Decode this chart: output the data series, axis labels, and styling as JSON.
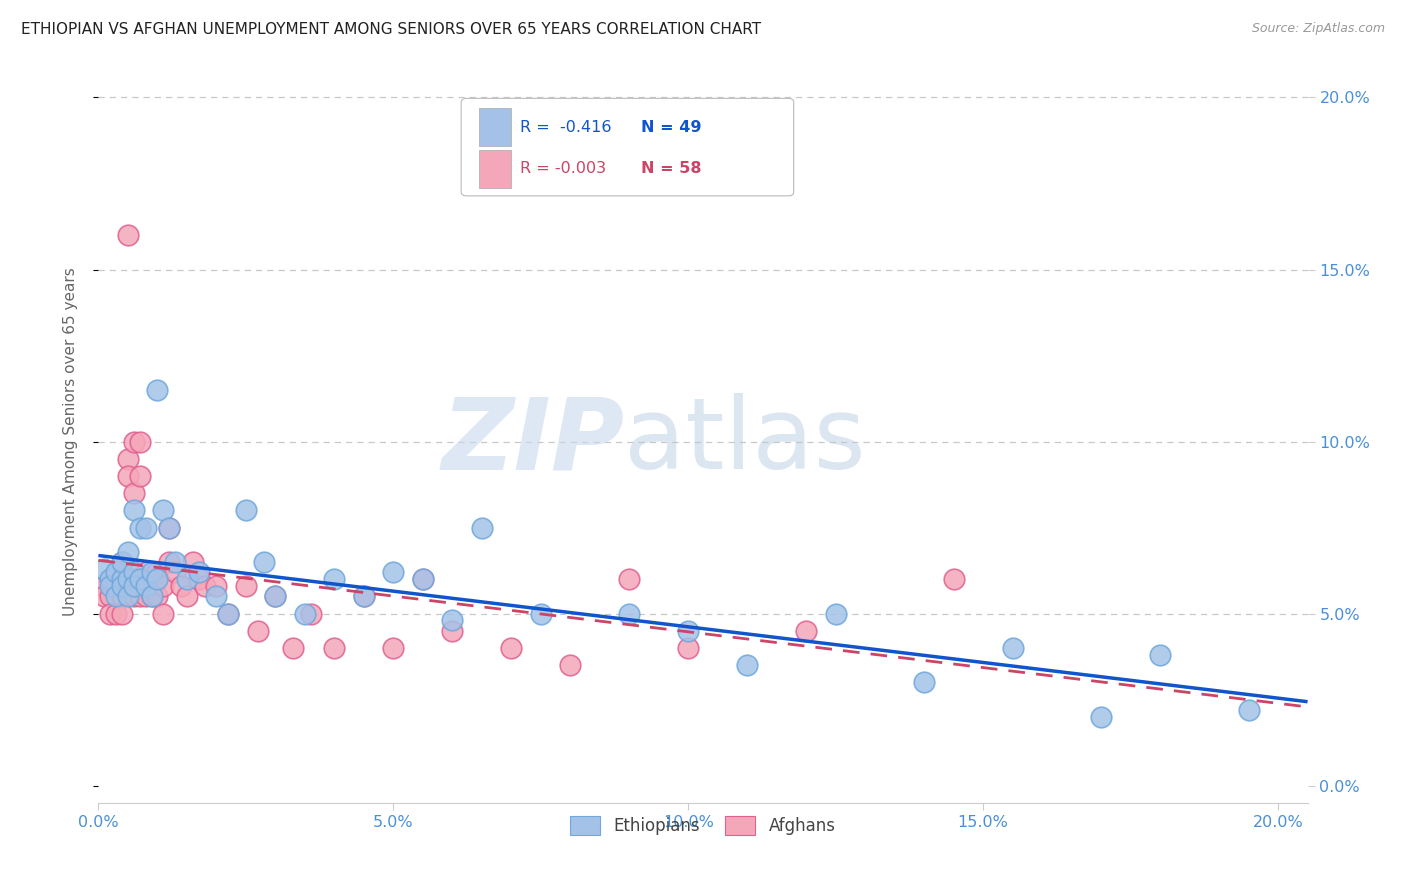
{
  "title": "ETHIOPIAN VS AFGHAN UNEMPLOYMENT AMONG SENIORS OVER 65 YEARS CORRELATION CHART",
  "source": "Source: ZipAtlas.com",
  "ylabel": "Unemployment Among Seniors over 65 years",
  "xlim": [
    0.0,
    0.205
  ],
  "ylim": [
    -0.005,
    0.205
  ],
  "xticks": [
    0.0,
    0.05,
    0.1,
    0.15,
    0.2
  ],
  "yticks": [
    0.0,
    0.05,
    0.1,
    0.15,
    0.2
  ],
  "xticklabels": [
    "0.0%",
    "",
    "",
    "",
    ""
  ],
  "xticklabels_right": [
    "",
    "5.0%",
    "10.0%",
    "15.0%",
    "20.0%"
  ],
  "yticklabels_right": [
    "0.0%",
    "5.0%",
    "10.0%",
    "15.0%",
    "20.0%"
  ],
  "ethiopian_color": "#a4c2e8",
  "afghan_color": "#f4a7b9",
  "ethiopian_edge_color": "#6fa8dc",
  "afghan_edge_color": "#e06090",
  "trendline_ethiopian_color": "#1155cc",
  "trendline_afghan_color": "#cc4466",
  "R_ethiopian": -0.416,
  "N_ethiopian": 49,
  "R_afghan": -0.003,
  "N_afghan": 58,
  "legend_label_ethiopian": "Ethiopians",
  "legend_label_afghan": "Afghans",
  "watermark_zip": "ZIP",
  "watermark_atlas": "atlas",
  "ethiopian_x": [
    0.001,
    0.002,
    0.002,
    0.003,
    0.003,
    0.004,
    0.004,
    0.004,
    0.005,
    0.005,
    0.005,
    0.006,
    0.006,
    0.006,
    0.007,
    0.007,
    0.008,
    0.008,
    0.009,
    0.009,
    0.01,
    0.01,
    0.011,
    0.012,
    0.013,
    0.015,
    0.017,
    0.02,
    0.022,
    0.025,
    0.028,
    0.03,
    0.035,
    0.04,
    0.045,
    0.05,
    0.055,
    0.06,
    0.065,
    0.075,
    0.09,
    0.1,
    0.11,
    0.125,
    0.14,
    0.155,
    0.17,
    0.18,
    0.195
  ],
  "ethiopian_y": [
    0.063,
    0.06,
    0.058,
    0.055,
    0.062,
    0.06,
    0.058,
    0.065,
    0.06,
    0.055,
    0.068,
    0.062,
    0.058,
    0.08,
    0.075,
    0.06,
    0.058,
    0.075,
    0.062,
    0.055,
    0.06,
    0.115,
    0.08,
    0.075,
    0.065,
    0.06,
    0.062,
    0.055,
    0.05,
    0.08,
    0.065,
    0.055,
    0.05,
    0.06,
    0.055,
    0.062,
    0.06,
    0.048,
    0.075,
    0.05,
    0.05,
    0.045,
    0.035,
    0.05,
    0.03,
    0.04,
    0.02,
    0.038,
    0.022
  ],
  "afghan_x": [
    0.001,
    0.001,
    0.002,
    0.002,
    0.002,
    0.003,
    0.003,
    0.003,
    0.004,
    0.004,
    0.004,
    0.005,
    0.005,
    0.005,
    0.005,
    0.006,
    0.006,
    0.006,
    0.006,
    0.007,
    0.007,
    0.007,
    0.007,
    0.008,
    0.008,
    0.008,
    0.009,
    0.009,
    0.01,
    0.01,
    0.011,
    0.011,
    0.012,
    0.012,
    0.013,
    0.014,
    0.015,
    0.016,
    0.017,
    0.018,
    0.02,
    0.022,
    0.025,
    0.027,
    0.03,
    0.033,
    0.036,
    0.04,
    0.045,
    0.05,
    0.055,
    0.06,
    0.07,
    0.08,
    0.09,
    0.1,
    0.12,
    0.145
  ],
  "afghan_y": [
    0.058,
    0.055,
    0.06,
    0.055,
    0.05,
    0.062,
    0.058,
    0.05,
    0.065,
    0.055,
    0.05,
    0.16,
    0.095,
    0.09,
    0.06,
    0.1,
    0.085,
    0.06,
    0.055,
    0.1,
    0.09,
    0.06,
    0.055,
    0.062,
    0.058,
    0.055,
    0.06,
    0.055,
    0.062,
    0.055,
    0.058,
    0.05,
    0.075,
    0.065,
    0.062,
    0.058,
    0.055,
    0.065,
    0.06,
    0.058,
    0.058,
    0.05,
    0.058,
    0.045,
    0.055,
    0.04,
    0.05,
    0.04,
    0.055,
    0.04,
    0.06,
    0.045,
    0.04,
    0.035,
    0.06,
    0.04,
    0.045,
    0.06
  ],
  "background_color": "#ffffff",
  "grid_color": "#c8c8c8",
  "title_color": "#222222",
  "axis_tick_color": "#4a90d9",
  "ylabel_color": "#666666"
}
